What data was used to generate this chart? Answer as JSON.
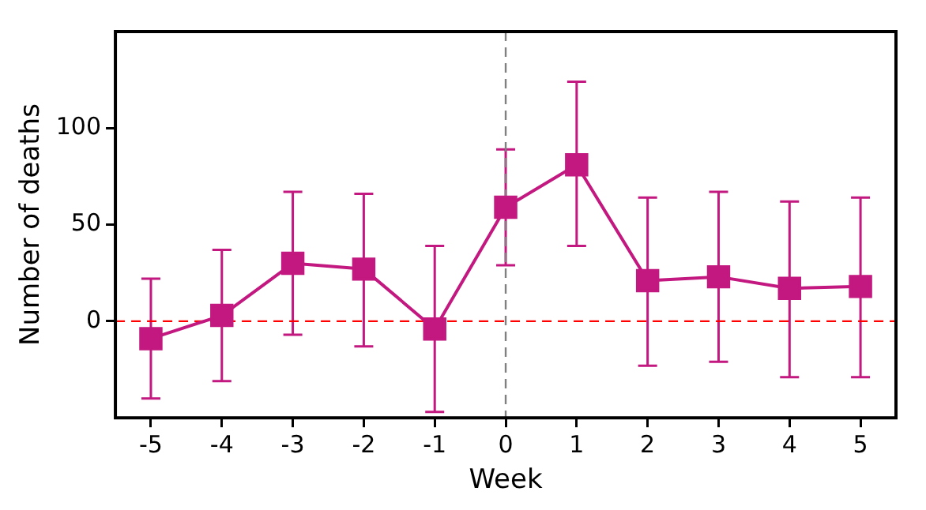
{
  "chart_data": {
    "type": "line",
    "xlabel": "Week",
    "ylabel": "Number of deaths",
    "x": [
      -5,
      -4,
      -3,
      -2,
      -1,
      0,
      1,
      2,
      3,
      4,
      5
    ],
    "series": [
      {
        "color": "#c2187f",
        "values": [
          -9,
          3,
          30,
          27,
          -4,
          59,
          81,
          21,
          23,
          17,
          18
        ],
        "errors": [
          [
            -40,
            22
          ],
          [
            -31,
            37
          ],
          [
            -7,
            67
          ],
          [
            -13,
            66
          ],
          [
            -47,
            39
          ],
          [
            29,
            89
          ],
          [
            39,
            124
          ],
          [
            -23,
            64
          ],
          [
            -21,
            67
          ],
          [
            -29,
            62
          ],
          [
            -29,
            64
          ]
        ]
      }
    ],
    "xlim": [
      -5.5,
      5.5
    ],
    "xticks": [
      -5,
      -4,
      -3,
      -2,
      -1,
      0,
      1,
      2,
      3,
      4,
      5
    ],
    "ylim": [
      -50,
      150
    ],
    "yticks": [
      0,
      50,
      100
    ],
    "ref_lines": [
      {
        "axis": "y",
        "value": 0,
        "color": "#ff0000",
        "line_style": "dashed"
      },
      {
        "axis": "x",
        "value": 0,
        "color": "#808080",
        "line_style": "dashed"
      }
    ],
    "grid": false,
    "legend": false,
    "marker": "square",
    "line_style": "solid"
  }
}
